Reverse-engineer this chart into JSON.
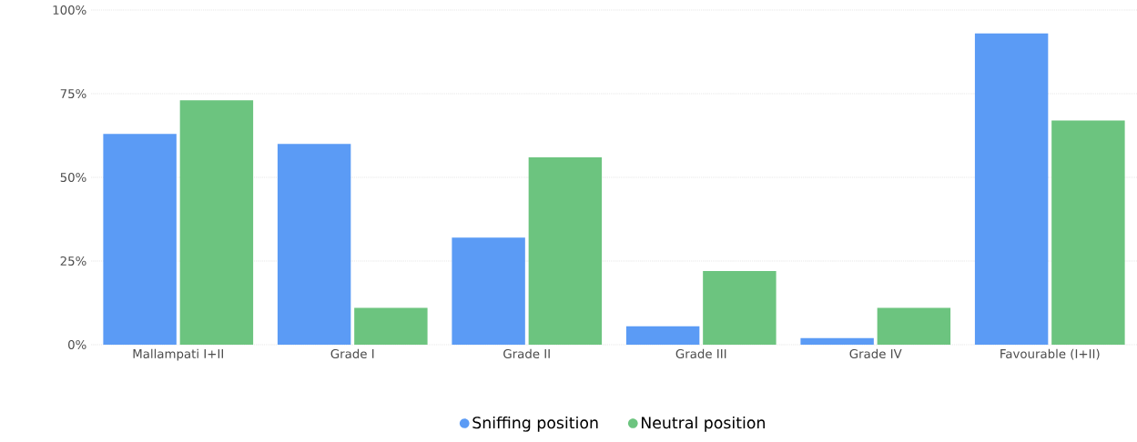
{
  "chart_data": {
    "type": "bar",
    "categories": [
      "Mallampati I+II",
      "Grade I",
      "Grade II",
      "Grade III",
      "Grade IV",
      "Favourable (I+II)"
    ],
    "series": [
      {
        "name": "Sniffing position",
        "color": "#5b9bf5",
        "values": [
          63,
          60,
          32,
          5.5,
          2,
          93
        ]
      },
      {
        "name": "Neutral position",
        "color": "#6cc47f",
        "values": [
          73,
          11,
          56,
          22,
          11,
          67
        ]
      }
    ],
    "ylim": [
      0,
      100
    ],
    "yticks": [
      {
        "value": 0,
        "label": "0%"
      },
      {
        "value": 25,
        "label": "25%"
      },
      {
        "value": 50,
        "label": "50%"
      },
      {
        "value": 75,
        "label": "75%"
      },
      {
        "value": 100,
        "label": "100%"
      }
    ],
    "grid": "y",
    "legend": "bottom"
  }
}
